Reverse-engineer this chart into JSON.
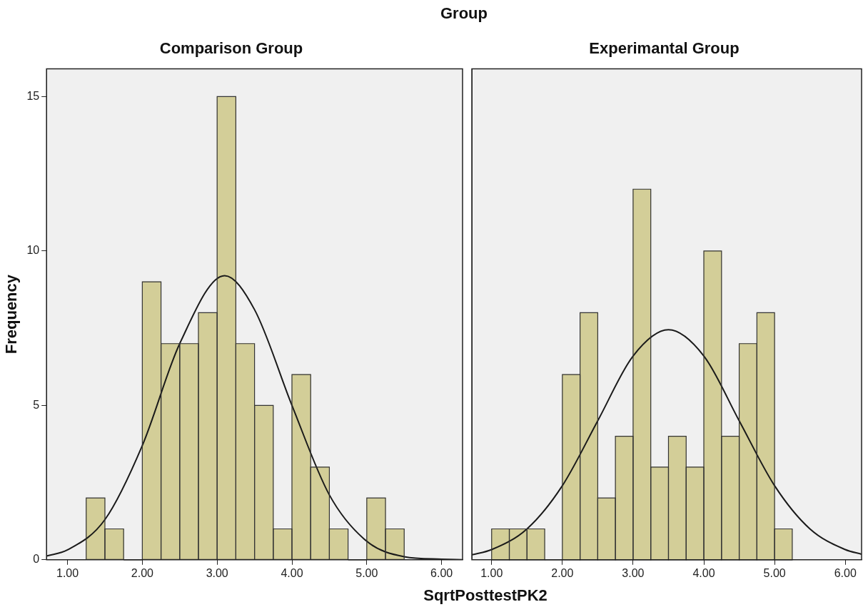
{
  "chart_data": [
    {
      "type": "histogram",
      "title": "Comparison Group",
      "annotations": [
        "Group"
      ],
      "xlabel": "SqrtPosttestPK2",
      "ylabel": "Frequency",
      "xlim": [
        0.72,
        6.28
      ],
      "xticks": [
        {
          "value": 1,
          "label": "1.00"
        },
        {
          "value": 2,
          "label": "2.00"
        },
        {
          "value": 3,
          "label": "3.00"
        },
        {
          "value": 4,
          "label": "4.00"
        },
        {
          "value": 5,
          "label": "5.00"
        },
        {
          "value": 6,
          "label": "6.00"
        }
      ],
      "ylim": [
        0,
        15.9
      ],
      "yticks": [
        0,
        5,
        10,
        15
      ],
      "grid": false,
      "legend": false,
      "series": [
        {
          "type": "histogram",
          "color": "#d3ce98",
          "bins": [
            1.25,
            1.5,
            1.75,
            2.0,
            2.25,
            2.5,
            2.75,
            3.0,
            3.25,
            3.5,
            3.75,
            4.0,
            4.25,
            4.5,
            4.75,
            5.0,
            5.25,
            5.5
          ],
          "values": [
            2,
            1,
            0,
            9,
            7,
            7,
            8,
            15,
            7,
            5,
            1,
            6,
            3,
            1,
            0,
            2,
            1
          ]
        },
        {
          "type": "line",
          "color": "#1a1a1a",
          "x": [
            0.72,
            1.0,
            1.5,
            2.0,
            2.5,
            3.1,
            3.5,
            4.0,
            4.5,
            5.0,
            5.5,
            6.0,
            6.28
          ],
          "values": [
            0.12,
            0.32,
            1.3,
            3.7,
            7.0,
            9.2,
            8.1,
            5.0,
            2.1,
            0.6,
            0.1,
            0.02,
            0.0
          ]
        }
      ]
    },
    {
      "type": "histogram",
      "title": "Experimantal Group",
      "xlim": [
        0.72,
        6.23
      ],
      "xticks": [
        {
          "value": 1,
          "label": "1.00"
        },
        {
          "value": 2,
          "label": "2.00"
        },
        {
          "value": 3,
          "label": "3.00"
        },
        {
          "value": 4,
          "label": "4.00"
        },
        {
          "value": 5,
          "label": "5.00"
        },
        {
          "value": 6,
          "label": "6.00"
        }
      ],
      "ylim": [
        0,
        15.9
      ],
      "grid": false,
      "legend": false,
      "tick_labels": "x",
      "series": [
        {
          "type": "histogram",
          "color": "#d3ce98",
          "bins": [
            1.0,
            1.25,
            1.5,
            1.75,
            2.0,
            2.25,
            2.5,
            2.75,
            3.0,
            3.25,
            3.5,
            3.75,
            4.0,
            4.25,
            4.5,
            4.75,
            5.0,
            5.25
          ],
          "values": [
            1,
            1,
            1,
            0,
            6,
            8,
            2,
            4,
            12,
            3,
            4,
            3,
            10,
            4,
            7,
            8,
            1
          ]
        },
        {
          "type": "line",
          "color": "#1a1a1a",
          "x": [
            0.72,
            1.0,
            1.5,
            2.0,
            2.5,
            3.0,
            3.5,
            4.0,
            4.5,
            5.0,
            5.5,
            6.0,
            6.23
          ],
          "values": [
            0.16,
            0.33,
            1.0,
            2.4,
            4.5,
            6.6,
            7.45,
            6.6,
            4.5,
            2.4,
            1.0,
            0.33,
            0.18
          ]
        }
      ]
    }
  ]
}
